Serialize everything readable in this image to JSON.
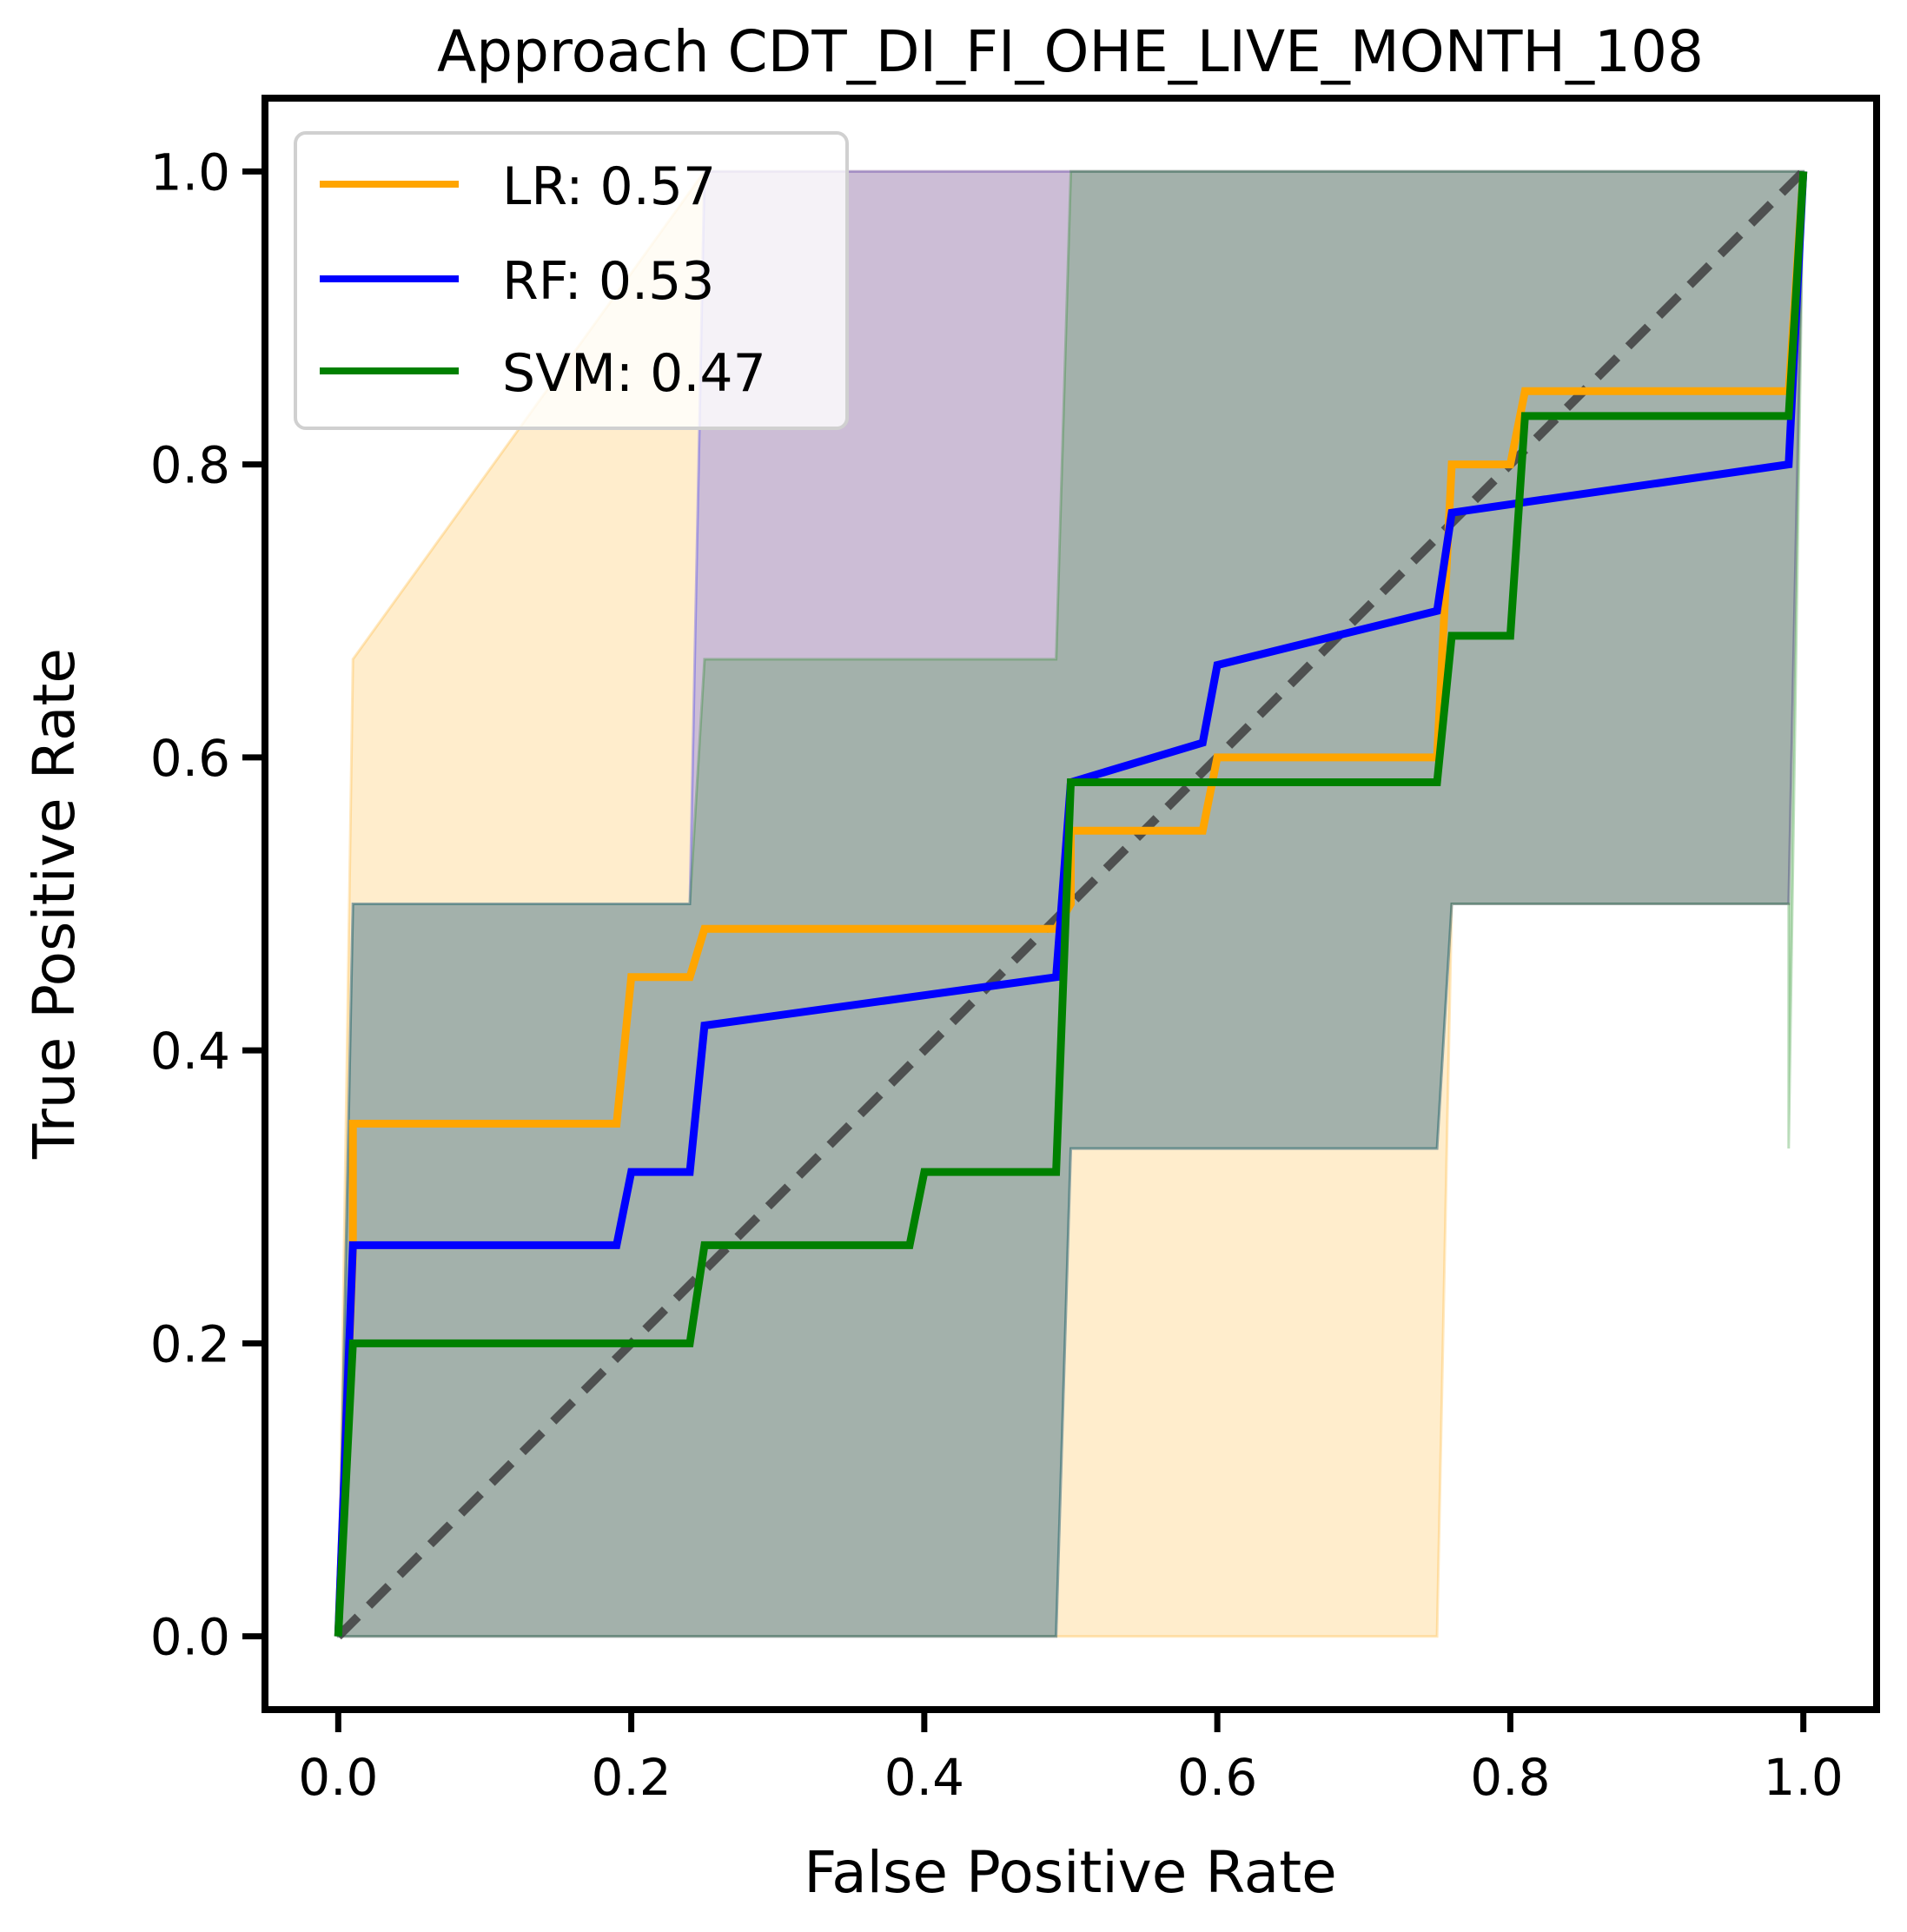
{
  "chart_data": {
    "type": "line",
    "title": "Approach CDT_DI_FI_OHE_LIVE_MONTH_108",
    "xlabel": "False Positive Rate",
    "ylabel": "True Positive Rate",
    "xlim": [
      -0.05,
      1.05
    ],
    "ylim": [
      -0.05,
      1.05
    ],
    "xticks": [
      0.0,
      0.2,
      0.4,
      0.6,
      0.8,
      1.0
    ],
    "yticks": [
      0.0,
      0.2,
      0.4,
      0.6,
      0.8,
      1.0
    ],
    "xtick_labels": [
      "0.0",
      "0.2",
      "0.4",
      "0.6",
      "0.8",
      "1.0"
    ],
    "ytick_labels": [
      "0.0",
      "0.2",
      "0.4",
      "0.6",
      "0.8",
      "1.0"
    ],
    "grid": false,
    "legend_position": "top-left",
    "diagonal": {
      "x": [
        0,
        1
      ],
      "y": [
        0,
        1
      ],
      "color": "#404040",
      "style": "dashed"
    },
    "series": [
      {
        "name": "LR",
        "legend_label": "LR: 0.57",
        "auc": 0.57,
        "color": "#FFA500",
        "x": [
          0,
          0.01,
          0.01,
          0.19,
          0.2,
          0.24,
          0.25,
          0.49,
          0.5,
          0.5,
          0.59,
          0.6,
          0.75,
          0.76,
          0.8,
          0.81,
          0.99,
          1.0
        ],
        "y": [
          0,
          0.26,
          0.35,
          0.35,
          0.45,
          0.45,
          0.483,
          0.483,
          0.5,
          0.55,
          0.55,
          0.6,
          0.6,
          0.8,
          0.8,
          0.85,
          0.85,
          1.0
        ],
        "band_upper": [
          {
            "x": 0,
            "y": 0
          },
          {
            "x": 0.01,
            "y": 0.667
          },
          {
            "x": 0.25,
            "y": 1.0
          },
          {
            "x": 1.0,
            "y": 1.0
          }
        ],
        "band_lower": [
          {
            "x": 0,
            "y": 0
          },
          {
            "x": 0.75,
            "y": 0.0
          },
          {
            "x": 0.76,
            "y": 0.5
          },
          {
            "x": 0.99,
            "y": 0.5
          },
          {
            "x": 1.0,
            "y": 1.0
          }
        ]
      },
      {
        "name": "RF",
        "legend_label": "RF: 0.53",
        "auc": 0.53,
        "color": "#0000FF",
        "x": [
          0,
          0.01,
          0.19,
          0.2,
          0.24,
          0.25,
          0.49,
          0.5,
          0.59,
          0.6,
          0.75,
          0.76,
          0.99,
          1.0
        ],
        "y": [
          0,
          0.267,
          0.267,
          0.317,
          0.317,
          0.417,
          0.45,
          0.583,
          0.61,
          0.663,
          0.7,
          0.767,
          0.8,
          1.0
        ],
        "band_upper": [
          {
            "x": 0,
            "y": 0
          },
          {
            "x": 0.01,
            "y": 0.5
          },
          {
            "x": 0.24,
            "y": 0.5
          },
          {
            "x": 0.25,
            "y": 1.0
          },
          {
            "x": 1.0,
            "y": 1.0
          }
        ],
        "band_lower": [
          {
            "x": 0,
            "y": 0
          },
          {
            "x": 0.49,
            "y": 0.0
          },
          {
            "x": 0.5,
            "y": 0.333
          },
          {
            "x": 0.75,
            "y": 0.333
          },
          {
            "x": 0.76,
            "y": 0.5
          },
          {
            "x": 0.99,
            "y": 0.5
          },
          {
            "x": 1.0,
            "y": 1.0
          }
        ]
      },
      {
        "name": "SVM",
        "legend_label": "SVM: 0.47",
        "auc": 0.47,
        "color": "#008000",
        "x": [
          0,
          0.01,
          0.24,
          0.25,
          0.39,
          0.4,
          0.49,
          0.5,
          0.75,
          0.76,
          0.8,
          0.81,
          0.99,
          1.0
        ],
        "y": [
          0,
          0.2,
          0.2,
          0.267,
          0.267,
          0.317,
          0.317,
          0.583,
          0.583,
          0.683,
          0.683,
          0.833,
          0.833,
          1.0
        ],
        "band_upper": [
          {
            "x": 0,
            "y": 0
          },
          {
            "x": 0.01,
            "y": 0.5
          },
          {
            "x": 0.24,
            "y": 0.5
          },
          {
            "x": 0.25,
            "y": 0.667
          },
          {
            "x": 0.49,
            "y": 0.667
          },
          {
            "x": 0.5,
            "y": 1.0
          },
          {
            "x": 1.0,
            "y": 1.0
          }
        ],
        "band_lower": [
          {
            "x": 0,
            "y": 0
          },
          {
            "x": 0.49,
            "y": 0.0
          },
          {
            "x": 0.5,
            "y": 0.333
          },
          {
            "x": 0.75,
            "y": 0.333
          },
          {
            "x": 0.76,
            "y": 0.5
          },
          {
            "x": 0.99,
            "y": 0.5
          },
          {
            "x": 0.99,
            "y": 0.333
          },
          {
            "x": 1.0,
            "y": 1.0
          }
        ]
      }
    ]
  }
}
